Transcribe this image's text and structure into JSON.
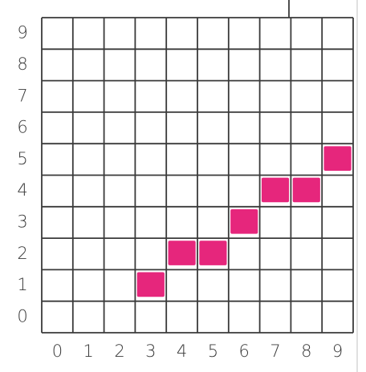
{
  "chart_data": {
    "type": "cells",
    "x": [
      3,
      4,
      5,
      6,
      7,
      8,
      9
    ],
    "values": [
      1,
      2,
      2,
      3,
      4,
      4,
      5
    ],
    "color": "#e6267c",
    "xlim": [
      -0.5,
      9.5
    ],
    "xticks": [
      0,
      1,
      2,
      3,
      4,
      5,
      6,
      7,
      8,
      9
    ],
    "ylim": [
      -0.5,
      9.5
    ],
    "yticks": [
      0,
      1,
      2,
      3,
      4,
      5,
      6,
      7,
      8,
      9
    ],
    "grid": true
  }
}
